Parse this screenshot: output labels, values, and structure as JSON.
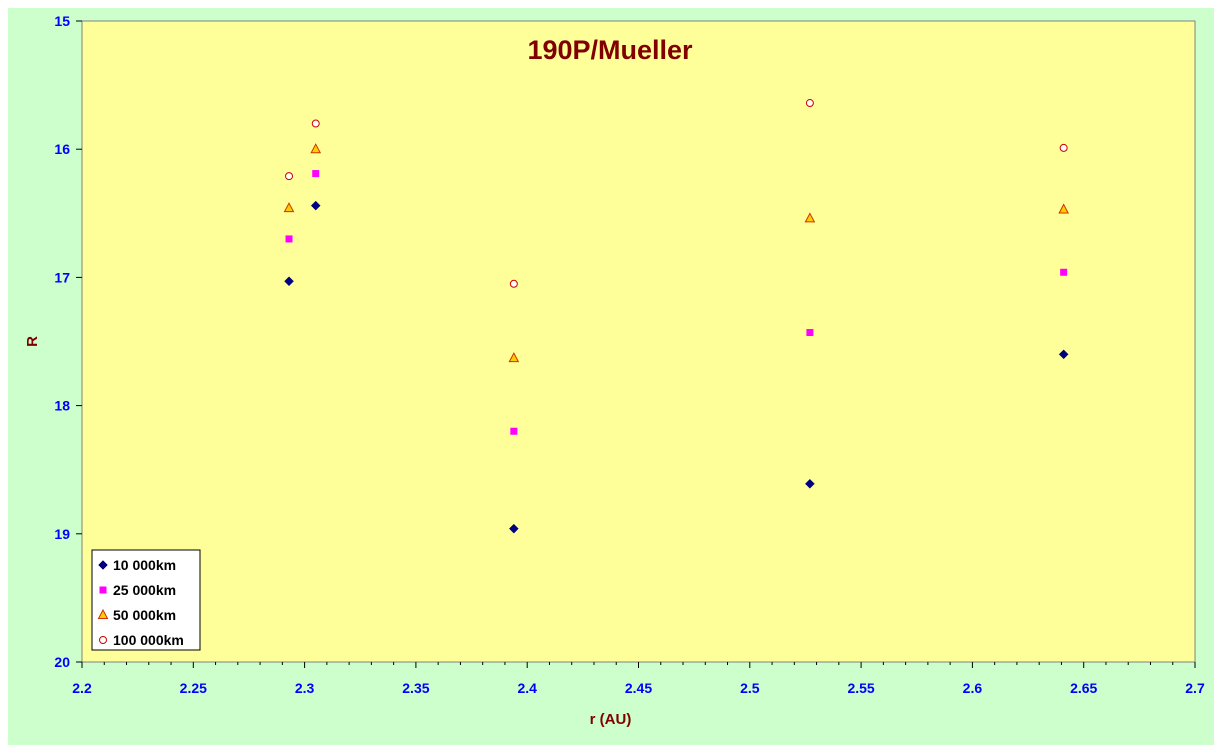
{
  "chart_data": {
    "type": "scatter",
    "title": "190P/Mueller",
    "xlabel": "r (AU)",
    "ylabel": "R",
    "xlim": [
      2.2,
      2.7
    ],
    "ylim": [
      15,
      20
    ],
    "y_inverted": true,
    "x_major_step": 0.05,
    "y_major_step": 1,
    "x_tick_labels": [
      "2.2",
      "2.25",
      "2.3",
      "2.35",
      "2.4",
      "2.45",
      "2.5",
      "2.55",
      "2.6",
      "2.65",
      "2.7"
    ],
    "y_tick_labels": [
      "15",
      "16",
      "17",
      "18",
      "19",
      "20"
    ],
    "grid": false,
    "legend_position": "bottom-left",
    "colors": {
      "plot_background": "#ffff99",
      "chart_background": "#ccffcc",
      "title": "#800000",
      "axis_title": "#800000",
      "tick_label": "#0000ff"
    },
    "series": [
      {
        "name": "10 000km",
        "marker": "diamond",
        "color": "#000080",
        "points": [
          [
            2.293,
            17.03
          ],
          [
            2.305,
            16.44
          ],
          [
            2.394,
            18.96
          ],
          [
            2.527,
            18.61
          ],
          [
            2.641,
            17.6
          ]
        ]
      },
      {
        "name": "25 000km",
        "marker": "square",
        "color": "#ff00ff",
        "points": [
          [
            2.293,
            16.7
          ],
          [
            2.305,
            16.19
          ],
          [
            2.394,
            18.2
          ],
          [
            2.527,
            17.43
          ],
          [
            2.641,
            16.96
          ]
        ]
      },
      {
        "name": "50 000km",
        "marker": "triangle",
        "color": "#ffcc00",
        "stroke": "#cc3300",
        "points": [
          [
            2.293,
            16.46
          ],
          [
            2.305,
            16.0
          ],
          [
            2.394,
            17.63
          ],
          [
            2.527,
            16.54
          ],
          [
            2.641,
            16.47
          ]
        ]
      },
      {
        "name": "100 000km",
        "marker": "circle",
        "color": "#ffffff",
        "stroke": "#cc0000",
        "points": [
          [
            2.293,
            16.21
          ],
          [
            2.305,
            15.8
          ],
          [
            2.394,
            17.05
          ],
          [
            2.527,
            15.64
          ],
          [
            2.641,
            15.99
          ]
        ]
      }
    ]
  }
}
